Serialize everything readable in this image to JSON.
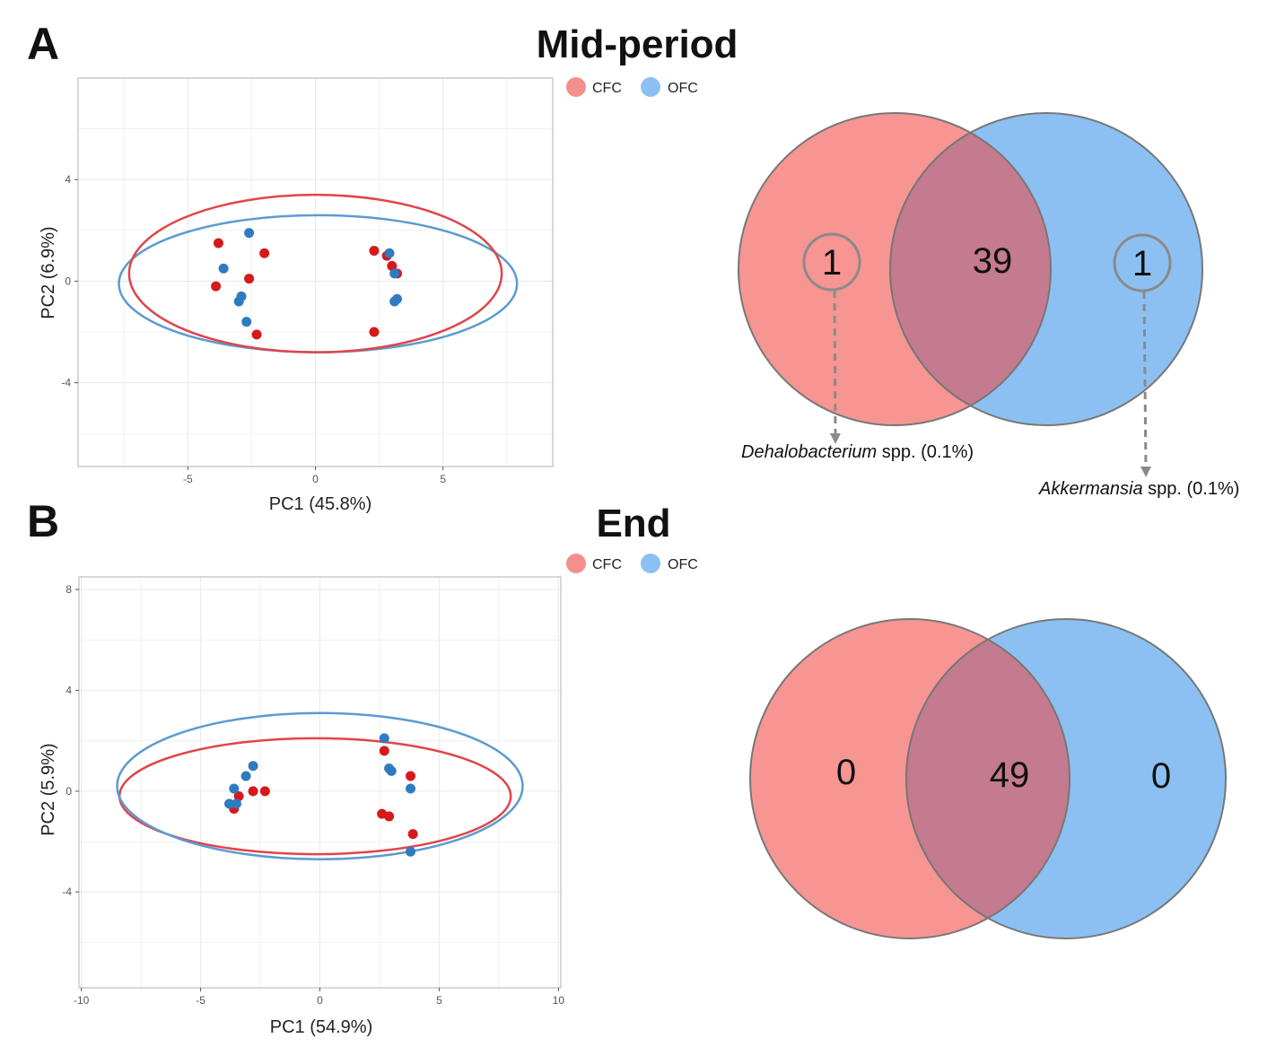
{
  "colors": {
    "CFC_point": "#d7191c",
    "OFC_point": "#2f7bbf",
    "CFC_ellipse": "#e0454a",
    "OFC_ellipse": "#5b9bd0",
    "CFC_venn": "#f79592",
    "OFC_venn": "#8cc0f2",
    "overlap_venn": "#c47a8f",
    "grid": "#ebebeb",
    "venn_stroke": "#777777",
    "arrow": "#8a8a8a"
  },
  "panels": [
    {
      "letter": "A",
      "title": "Mid-period",
      "legend": [
        {
          "label": "CFC",
          "color": "#f3908e"
        },
        {
          "label": "OFC",
          "color": "#8cc0f2"
        }
      ],
      "chart_data": {
        "type": "scatter",
        "xlabel": "PC1 (45.8%)",
        "ylabel": "PC2 (6.9%)",
        "xlim": [
          -9.3,
          9.3
        ],
        "ylim": [
          -7.3,
          8.0
        ],
        "xticks": [
          -5,
          0,
          5
        ],
        "yticks": [
          -4,
          0,
          4
        ],
        "xtick_labels": [
          "-5",
          "0",
          "5"
        ],
        "ytick_labels": [
          "-4",
          "0",
          "4"
        ],
        "grid": true,
        "series": [
          {
            "name": "CFC",
            "points": [
              [
                -3.8,
                1.5
              ],
              [
                -2.0,
                1.1
              ],
              [
                -3.9,
                -0.2
              ],
              [
                -2.6,
                0.1
              ],
              [
                -2.3,
                -2.1
              ],
              [
                2.3,
                1.2
              ],
              [
                2.8,
                1.0
              ],
              [
                3.0,
                0.6
              ],
              [
                3.2,
                0.3
              ],
              [
                2.3,
                -2.0
              ]
            ],
            "ellipse": {
              "cx": 0.0,
              "cy": 0.3,
              "rx": 7.3,
              "ry": 3.1
            }
          },
          {
            "name": "OFC",
            "points": [
              [
                -2.6,
                1.9
              ],
              [
                -3.6,
                0.5
              ],
              [
                -2.9,
                -0.6
              ],
              [
                -3.0,
                -0.8
              ],
              [
                -2.7,
                -1.6
              ],
              [
                2.9,
                1.1
              ],
              [
                3.1,
                0.3
              ],
              [
                3.2,
                -0.7
              ],
              [
                3.1,
                -0.8
              ]
            ],
            "ellipse": {
              "cx": 0.1,
              "cy": -0.1,
              "rx": 7.8,
              "ry": 2.7
            }
          }
        ]
      },
      "venn": {
        "left_only": "1",
        "shared": "39",
        "right_only": "1",
        "annotations": [
          {
            "genus": "Dehalobacterium",
            "suffix": " spp. (0.1%)"
          },
          {
            "genus": "Akkermansia",
            "suffix": " spp. (0.1%)"
          }
        ]
      }
    },
    {
      "letter": "B",
      "title": "End",
      "legend": [
        {
          "label": "CFC",
          "color": "#f3908e"
        },
        {
          "label": "OFC",
          "color": "#8cc0f2"
        }
      ],
      "chart_data": {
        "type": "scatter",
        "xlabel": "PC1 (54.9%)",
        "ylabel": "PC2 (5.9%)",
        "xlim": [
          -10.1,
          10.1
        ],
        "ylim": [
          -7.8,
          8.5
        ],
        "xticks": [
          -10,
          -5,
          0,
          5,
          10
        ],
        "yticks": [
          -4,
          0,
          4,
          8
        ],
        "xtick_labels": [
          "-10",
          "-5",
          "0",
          "5",
          "10"
        ],
        "ytick_labels": [
          "-4",
          "0",
          "4",
          "8"
        ],
        "grid": true,
        "series": [
          {
            "name": "CFC",
            "points": [
              [
                -3.4,
                -0.2
              ],
              [
                -2.8,
                0.0
              ],
              [
                -2.3,
                0.0
              ],
              [
                -3.6,
                -0.7
              ],
              [
                2.7,
                1.6
              ],
              [
                3.8,
                0.6
              ],
              [
                2.6,
                -0.9
              ],
              [
                2.9,
                -1.0
              ],
              [
                3.9,
                -1.7
              ]
            ],
            "ellipse": {
              "cx": -0.2,
              "cy": -0.2,
              "rx": 8.2,
              "ry": 2.3
            }
          },
          {
            "name": "OFC",
            "points": [
              [
                -2.8,
                1.0
              ],
              [
                -3.1,
                0.6
              ],
              [
                -3.6,
                0.1
              ],
              [
                -3.8,
                -0.5
              ],
              [
                -3.5,
                -0.5
              ],
              [
                2.7,
                2.1
              ],
              [
                2.9,
                0.9
              ],
              [
                3.0,
                0.8
              ],
              [
                3.8,
                0.1
              ],
              [
                3.8,
                -2.4
              ]
            ],
            "ellipse": {
              "cx": 0.0,
              "cy": 0.2,
              "rx": 8.5,
              "ry": 2.9
            }
          }
        ]
      },
      "venn": {
        "left_only": "0",
        "shared": "49",
        "right_only": "0"
      }
    }
  ]
}
